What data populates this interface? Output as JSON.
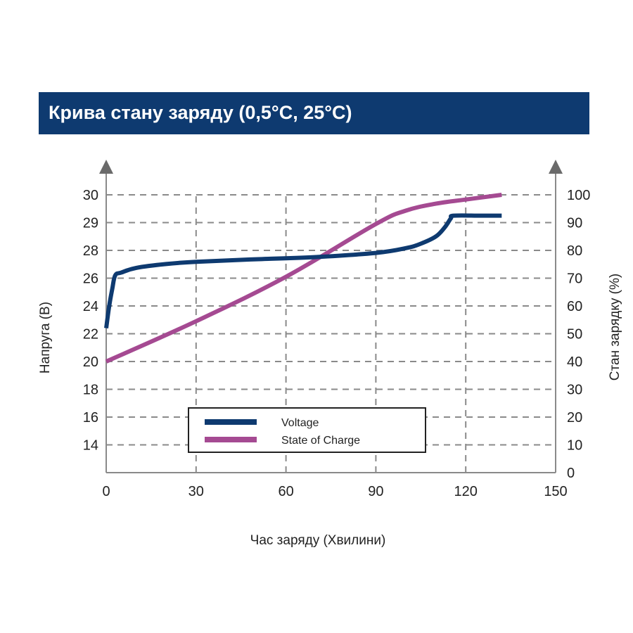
{
  "title": "Крива стану заряду (0,5°C, 25°C)",
  "chart_data": {
    "type": "line",
    "title": "Крива стану заряду (0,5°C, 25°C)",
    "xlabel": "Час заряду (Хвилини)",
    "ylabel_left": "Напруга (В)",
    "ylabel_right": "Стан зарядку (%)",
    "xlim": [
      0,
      150
    ],
    "x_ticks": [
      "0",
      "30",
      "60",
      "90",
      "120",
      "150"
    ],
    "x_tick_values": [
      0,
      30,
      60,
      90,
      120,
      150
    ],
    "y_left_ticks": [
      "30",
      "29",
      "28",
      "26",
      "24",
      "22",
      "20",
      "18",
      "16",
      "14"
    ],
    "y_right_ticks": [
      "100",
      "90",
      "80",
      "70",
      "60",
      "50",
      "40",
      "30",
      "20",
      "10",
      "0"
    ],
    "y_right_tick_values": [
      100,
      90,
      80,
      70,
      60,
      50,
      40,
      30,
      20,
      10,
      0
    ],
    "ylim_right": [
      0,
      100
    ],
    "grid": true,
    "legend_position": "bottom-center",
    "colors": {
      "voltage": "#0e3a70",
      "soc": "#a54a92"
    },
    "series": [
      {
        "name": "Voltage",
        "axis": "left",
        "x": [
          0,
          1,
          2,
          3,
          5,
          10,
          20,
          30,
          50,
          70,
          90,
          100,
          105,
          110,
          113,
          115,
          116,
          125,
          132
        ],
        "y_percent": [
          52,
          60,
          66,
          71,
          72,
          73.7,
          75.1,
          75.9,
          76.8,
          77.6,
          79.1,
          80.8,
          82.4,
          85.0,
          88.3,
          91.5,
          92.5,
          92.5,
          92.5
        ]
      },
      {
        "name": "State of Charge",
        "axis": "right",
        "x": [
          0,
          30,
          60,
          90,
          100,
          110,
          120,
          132
        ],
        "y_percent": [
          40,
          54.5,
          70.5,
          89.5,
          94.3,
          96.8,
          98.3,
          100
        ]
      }
    ]
  }
}
